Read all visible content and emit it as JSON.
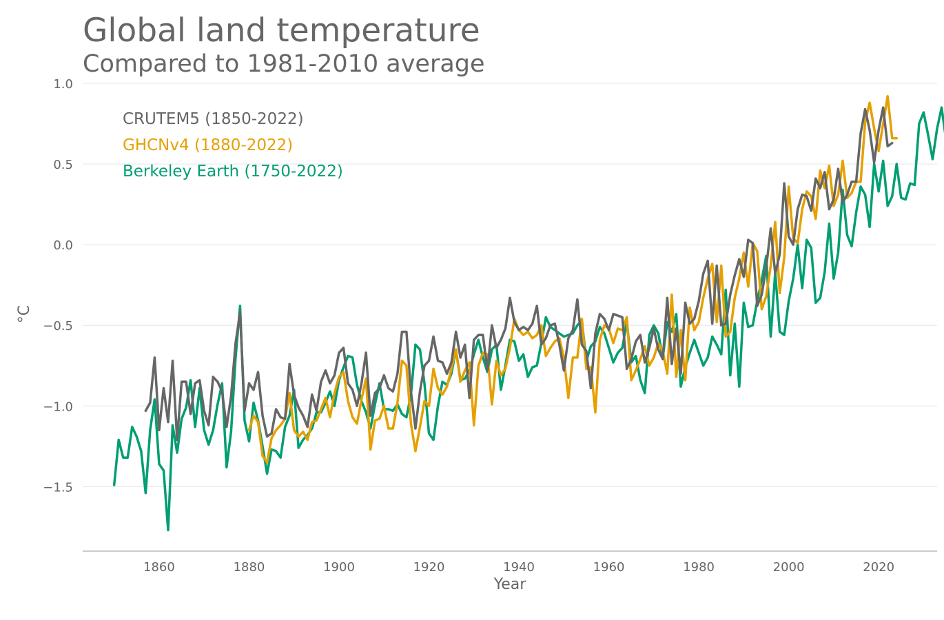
{
  "chart_data": {
    "type": "line",
    "title": "Global land temperature",
    "subtitle": "Compared to 1981-2010 average",
    "xlabel": "Year",
    "ylabel": "°C",
    "xlim": [
      1843,
      2033
    ],
    "ylim": [
      -1.9,
      1.0
    ],
    "yticks": [
      1.0,
      0.5,
      0.0,
      -0.5,
      -1.0,
      -1.5
    ],
    "ytick_labels": [
      "1.0",
      "0.5",
      "0.0",
      "−0.5",
      "−1.0",
      "−1.5"
    ],
    "xticks": [
      1860,
      1880,
      1900,
      1920,
      1940,
      1960,
      1980,
      2000,
      2020
    ],
    "xtick_labels": [
      "1860",
      "1880",
      "1900",
      "1920",
      "1940",
      "1960",
      "1980",
      "2000",
      "2020"
    ],
    "grid": true,
    "legend_position": "top-left",
    "series": [
      {
        "name": "Berkeley Earth (1750-2022)",
        "color": "#009e73",
        "x_start": 1850,
        "values": [
          -1.49,
          -1.21,
          -1.32,
          -1.32,
          -1.13,
          -1.19,
          -1.28,
          -1.54,
          -1.15,
          -0.96,
          -1.36,
          -1.4,
          -1.77,
          -1.12,
          -1.29,
          -1.08,
          -1.01,
          -0.84,
          -1.13,
          -0.89,
          -1.15,
          -1.24,
          -1.15,
          -0.99,
          -0.86,
          -1.38,
          -1.16,
          -0.7,
          -0.38,
          -1.09,
          -1.22,
          -0.98,
          -1.09,
          -1.25,
          -1.42,
          -1.27,
          -1.28,
          -1.32,
          -1.13,
          -1.06,
          -0.9,
          -1.26,
          -1.21,
          -1.18,
          -1.14,
          -1.04,
          -1.04,
          -0.98,
          -0.91,
          -1.0,
          -0.84,
          -0.76,
          -0.69,
          -0.7,
          -0.87,
          -0.97,
          -1.04,
          -1.14,
          -0.99,
          -0.86,
          -1.02,
          -1.02,
          -1.03,
          -0.99,
          -1.05,
          -1.07,
          -0.93,
          -0.62,
          -0.65,
          -0.86,
          -1.17,
          -1.21,
          -1.0,
          -0.85,
          -0.87,
          -0.8,
          -0.65,
          -0.84,
          -0.83,
          -0.78,
          -0.68,
          -0.59,
          -0.7,
          -0.79,
          -0.65,
          -0.62,
          -0.9,
          -0.75,
          -0.59,
          -0.6,
          -0.72,
          -0.68,
          -0.82,
          -0.76,
          -0.75,
          -0.61,
          -0.45,
          -0.51,
          -0.53,
          -0.55,
          -0.57,
          -0.56,
          -0.55,
          -0.5,
          -0.47,
          -0.72,
          -0.63,
          -0.6,
          -0.51,
          -0.55,
          -0.64,
          -0.73,
          -0.67,
          -0.64,
          -0.48,
          -0.73,
          -0.69,
          -0.84,
          -0.92,
          -0.56,
          -0.5,
          -0.55,
          -0.7,
          -0.48,
          -0.54,
          -0.43,
          -0.88,
          -0.76,
          -0.67,
          -0.59,
          -0.67,
          -0.75,
          -0.7,
          -0.57,
          -0.62,
          -0.68,
          -0.28,
          -0.81,
          -0.49,
          -0.88,
          -0.36,
          -0.51,
          -0.5,
          -0.35,
          -0.22,
          -0.07,
          -0.57,
          -0.17,
          -0.54,
          -0.56,
          -0.35,
          -0.21,
          0.0,
          -0.27,
          0.03,
          -0.02,
          -0.36,
          -0.33,
          -0.17,
          0.13,
          -0.21,
          -0.05,
          0.34,
          0.06,
          -0.01,
          0.2,
          0.36,
          0.31,
          0.11,
          0.5,
          0.33,
          0.52,
          0.24,
          0.3,
          0.5,
          0.29,
          0.28,
          0.38,
          0.37,
          0.75,
          0.82,
          0.68,
          0.53,
          0.72,
          0.85,
          0.65,
          0.69
        ]
      },
      {
        "name": "GHCNv4 (1880-2022)",
        "color": "#e6a000",
        "x_start": 1880,
        "values": [
          -1.15,
          -1.06,
          -1.1,
          -1.31,
          -1.35,
          -1.2,
          -1.15,
          -1.12,
          -1.08,
          -0.92,
          -1.15,
          -1.19,
          -1.16,
          -1.21,
          -1.1,
          -1.09,
          -1.02,
          -0.95,
          -1.07,
          -0.92,
          -0.82,
          -0.79,
          -0.97,
          -1.07,
          -1.11,
          -0.96,
          -0.83,
          -1.27,
          -1.09,
          -1.08,
          -1.0,
          -1.14,
          -1.14,
          -0.98,
          -0.72,
          -0.75,
          -1.11,
          -1.28,
          -1.13,
          -0.97,
          -1.0,
          -0.77,
          -0.89,
          -0.93,
          -0.88,
          -0.77,
          -0.65,
          -0.85,
          -0.78,
          -0.73,
          -1.12,
          -0.75,
          -0.67,
          -0.68,
          -0.99,
          -0.72,
          -0.81,
          -0.77,
          -0.64,
          -0.46,
          -0.53,
          -0.56,
          -0.54,
          -0.58,
          -0.56,
          -0.5,
          -0.69,
          -0.64,
          -0.6,
          -0.58,
          -0.7,
          -0.95,
          -0.7,
          -0.7,
          -0.46,
          -0.77,
          -0.76,
          -1.04,
          -0.59,
          -0.5,
          -0.52,
          -0.61,
          -0.52,
          -0.53,
          -0.45,
          -0.84,
          -0.78,
          -0.71,
          -0.63,
          -0.75,
          -0.7,
          -0.61,
          -0.66,
          -0.8,
          -0.31,
          -0.82,
          -0.53,
          -0.84,
          -0.39,
          -0.53,
          -0.48,
          -0.33,
          -0.21,
          -0.12,
          -0.48,
          -0.13,
          -0.57,
          -0.54,
          -0.33,
          -0.21,
          -0.05,
          -0.26,
          0.01,
          -0.04,
          -0.4,
          -0.32,
          -0.13,
          0.14,
          -0.3,
          -0.08,
          0.36,
          0.04,
          0.01,
          0.22,
          0.33,
          0.3,
          0.16,
          0.46,
          0.35,
          0.49,
          0.24,
          0.31,
          0.52,
          0.29,
          0.32,
          0.39,
          0.39,
          0.76,
          0.88,
          0.72,
          0.58,
          0.75,
          0.92,
          0.66,
          0.66
        ]
      },
      {
        "name": "CRUTEM5 (1850-2022)",
        "color": "#666666",
        "x_start": 1857,
        "values": [
          -1.03,
          -0.98,
          -0.7,
          -1.15,
          -0.89,
          -1.1,
          -0.72,
          -1.21,
          -0.85,
          -0.85,
          -1.05,
          -0.86,
          -0.84,
          -1.03,
          -1.12,
          -0.82,
          -0.85,
          -0.91,
          -1.13,
          -0.94,
          -0.61,
          -0.42,
          -1.03,
          -0.86,
          -0.9,
          -0.79,
          -1.06,
          -1.19,
          -1.17,
          -1.02,
          -1.07,
          -1.08,
          -0.74,
          -0.93,
          -1.01,
          -1.06,
          -1.13,
          -0.93,
          -1.03,
          -0.85,
          -0.78,
          -0.86,
          -0.81,
          -0.67,
          -0.64,
          -0.86,
          -0.9,
          -1.0,
          -0.86,
          -0.67,
          -1.06,
          -0.92,
          -0.89,
          -0.81,
          -0.89,
          -0.91,
          -0.8,
          -0.54,
          -0.54,
          -0.91,
          -1.14,
          -0.91,
          -0.75,
          -0.72,
          -0.57,
          -0.72,
          -0.73,
          -0.8,
          -0.73,
          -0.54,
          -0.7,
          -0.62,
          -0.95,
          -0.59,
          -0.56,
          -0.56,
          -0.78,
          -0.5,
          -0.64,
          -0.59,
          -0.52,
          -0.33,
          -0.48,
          -0.53,
          -0.51,
          -0.53,
          -0.49,
          -0.38,
          -0.62,
          -0.58,
          -0.5,
          -0.49,
          -0.62,
          -0.78,
          -0.58,
          -0.53,
          -0.34,
          -0.62,
          -0.66,
          -0.89,
          -0.55,
          -0.43,
          -0.46,
          -0.53,
          -0.43,
          -0.44,
          -0.45,
          -0.77,
          -0.71,
          -0.6,
          -0.56,
          -0.73,
          -0.64,
          -0.52,
          -0.65,
          -0.71,
          -0.33,
          -0.74,
          -0.52,
          -0.8,
          -0.36,
          -0.49,
          -0.46,
          -0.35,
          -0.18,
          -0.1,
          -0.49,
          -0.13,
          -0.5,
          -0.49,
          -0.31,
          -0.19,
          -0.09,
          -0.2,
          0.03,
          0.01,
          -0.38,
          -0.31,
          -0.14,
          0.1,
          -0.18,
          -0.06,
          0.38,
          0.05,
          0.0,
          0.22,
          0.31,
          0.3,
          0.21,
          0.41,
          0.35,
          0.45,
          0.22,
          0.28,
          0.47,
          0.26,
          0.31,
          0.39,
          0.39,
          0.69,
          0.84,
          0.71,
          0.51,
          0.71,
          0.85,
          0.61,
          0.63
        ]
      }
    ]
  }
}
